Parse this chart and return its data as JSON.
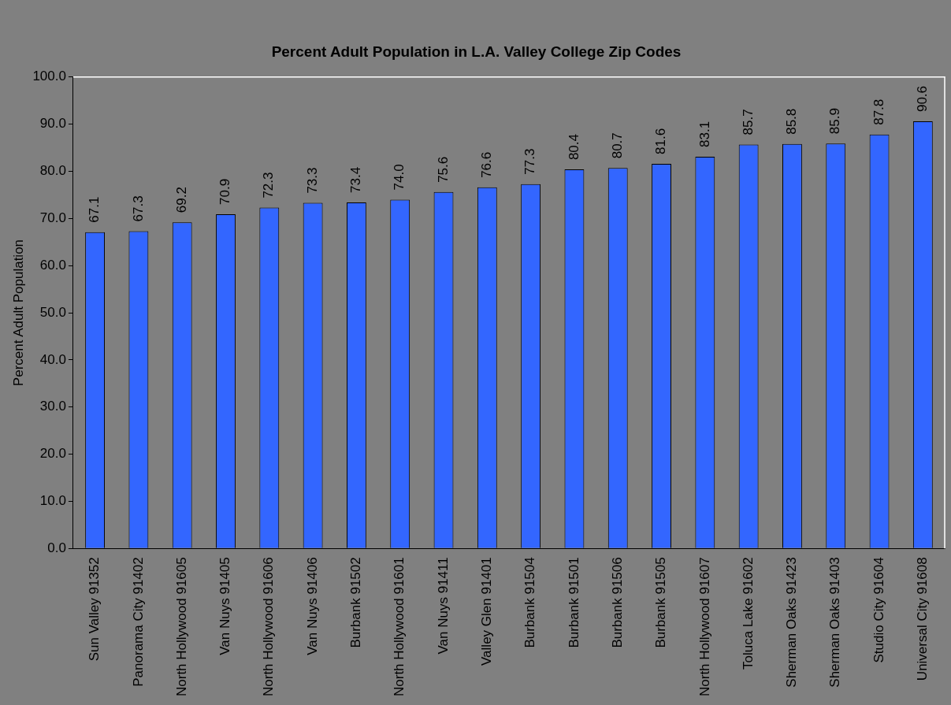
{
  "chart_data": {
    "type": "bar",
    "title": "Percent Adult Population in L.A. Valley College Zip Codes",
    "ylabel": "Percent Adult Population",
    "categories": [
      "Sun Valley 91352",
      "Panorama City 91402",
      "North Hollywood 91605",
      "Van Nuys 91405",
      "North Hollywood 91606",
      "Van Nuys 91406",
      "Burbank 91502",
      "North Hollywood 91601",
      "Van Nuys 91411",
      "Valley Glen 91401",
      "Burbank 91504",
      "Burbank 91501",
      "Burbank 91506",
      "Burbank 91505",
      "North Hollywood 91607",
      "Toluca Lake 91602",
      "Sherman Oaks 91423",
      "Sherman Oaks 91403",
      "Studio City 91604",
      "Universal City 91608"
    ],
    "values": [
      67.1,
      67.3,
      69.2,
      70.9,
      72.3,
      73.3,
      73.4,
      74.0,
      75.6,
      76.6,
      77.3,
      80.4,
      80.7,
      81.6,
      83.1,
      85.7,
      85.8,
      85.9,
      87.8,
      90.6
    ],
    "value_labels": [
      "67.1",
      "67.3",
      "69.2",
      "70.9",
      "72.3",
      "73.3",
      "73.4",
      "74.0",
      "75.6",
      "76.6",
      "77.3",
      "80.4",
      "80.7",
      "81.6",
      "83.1",
      "85.7",
      "85.8",
      "85.9",
      "87.8",
      "90.6"
    ],
    "color": "#3366ff",
    "ylim": [
      0,
      100
    ],
    "yticks": [
      {
        "value": 0,
        "label": "0.0"
      },
      {
        "value": 10,
        "label": "10.0"
      },
      {
        "value": 20,
        "label": "20.0"
      },
      {
        "value": 30,
        "label": "30.0"
      },
      {
        "value": 40,
        "label": "40.0"
      },
      {
        "value": 50,
        "label": "50.0"
      },
      {
        "value": 60,
        "label": "60.0"
      },
      {
        "value": 70,
        "label": "70.0"
      },
      {
        "value": 80,
        "label": "80.0"
      },
      {
        "value": 90,
        "label": "90.0"
      },
      {
        "value": 100,
        "label": "100.0"
      }
    ],
    "grid": false,
    "legend": false
  }
}
